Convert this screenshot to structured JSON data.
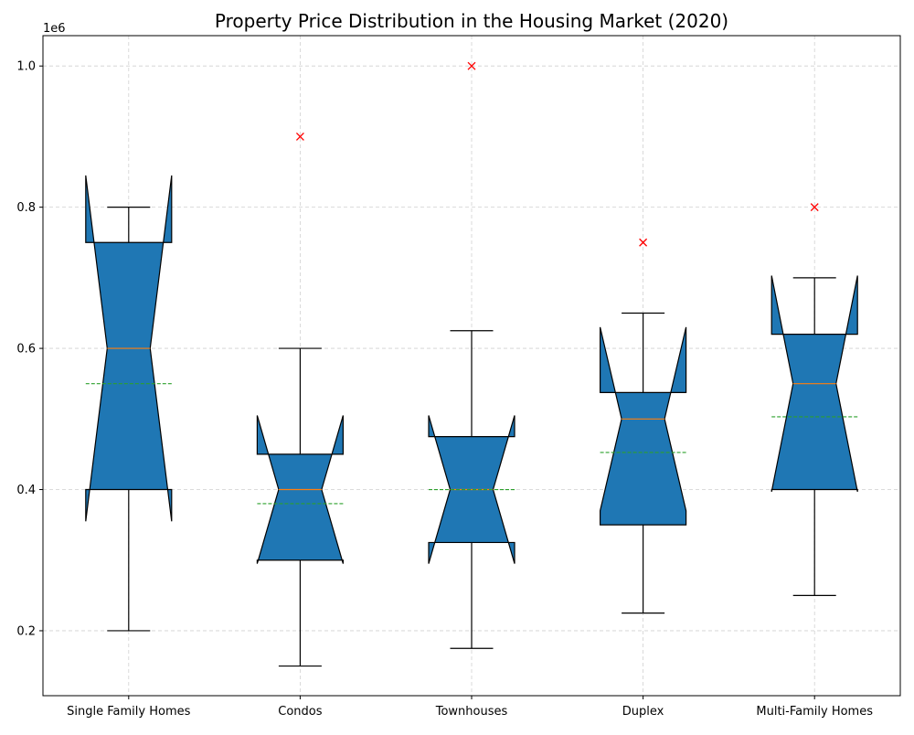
{
  "chart_data": {
    "type": "boxplot",
    "notched": true,
    "title": "Property Price Distribution in the Housing Market (2020)",
    "xlabel": "",
    "ylabel": "",
    "y_offset_text": "1e6",
    "ylim": [
      0.108,
      1.043
    ],
    "y_ticks": [
      0.2,
      0.4,
      0.6,
      0.8,
      1.0
    ],
    "y_tick_labels": [
      "0.2",
      "0.4",
      "0.6",
      "0.8",
      "1.0"
    ],
    "grid": true,
    "categories": [
      "Single Family Homes",
      "Condos",
      "Townhouses",
      "Duplex",
      "Multi-Family Homes"
    ],
    "boxes": [
      {
        "label": "Single Family Homes",
        "whisker_low": 0.2,
        "q1": 0.4,
        "median": 0.6,
        "q3": 0.75,
        "whisker_high": 0.8,
        "mean": 0.55,
        "notch_low": 0.355,
        "notch_high": 0.845,
        "outliers": []
      },
      {
        "label": "Condos",
        "whisker_low": 0.15,
        "q1": 0.3,
        "median": 0.4,
        "q3": 0.45,
        "whisker_high": 0.6,
        "mean": 0.38,
        "notch_low": 0.295,
        "notch_high": 0.505,
        "outliers": [
          0.9
        ]
      },
      {
        "label": "Townhouses",
        "whisker_low": 0.175,
        "q1": 0.325,
        "median": 0.4,
        "q3": 0.475,
        "whisker_high": 0.625,
        "mean": 0.4,
        "notch_low": 0.295,
        "notch_high": 0.505,
        "outliers": [
          1.0
        ]
      },
      {
        "label": "Duplex",
        "whisker_low": 0.225,
        "q1": 0.35,
        "median": 0.5,
        "q3": 0.5375,
        "whisker_high": 0.65,
        "mean": 0.4525,
        "notch_low": 0.37,
        "notch_high": 0.63,
        "outliers": [
          0.75
        ]
      },
      {
        "label": "Multi-Family Homes",
        "whisker_low": 0.25,
        "q1": 0.4,
        "median": 0.55,
        "q3": 0.62,
        "whisker_high": 0.7,
        "mean": 0.503,
        "notch_low": 0.397,
        "notch_high": 0.703,
        "outliers": [
          0.8
        ]
      }
    ],
    "colors": {
      "box_fill": "#1f77b4",
      "median": "#ff7f0e",
      "mean": "#2ca02c",
      "outlier": "#ff0000",
      "edge": "#000000",
      "grid": "#d0d0d0"
    }
  }
}
